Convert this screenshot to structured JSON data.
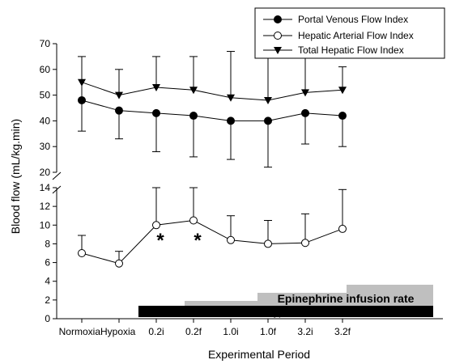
{
  "chart_data": {
    "type": "line",
    "xlabel": "Experimental Period",
    "ylabel": "Blood flow (mL/kg.min)",
    "categories": [
      "Normoxia",
      "Hypoxia",
      "0.2i",
      "0.2f",
      "1.0i",
      "1.0f",
      "3.2i",
      "3.2f"
    ],
    "y_axis_break": {
      "lower_range": [
        0,
        14
      ],
      "upper_range": [
        20,
        70
      ]
    },
    "y_ticks_lower": [
      "0",
      "2",
      "4",
      "6",
      "8",
      "10",
      "12",
      "14"
    ],
    "y_ticks_upper": [
      "20",
      "30",
      "40",
      "50",
      "60",
      "70"
    ],
    "series": [
      {
        "name": "Portal Venous Flow Index",
        "marker": "filled-circle",
        "values": [
          48,
          44,
          43,
          42,
          40,
          40,
          43,
          42
        ],
        "error_upper": [
          null,
          33,
          28,
          26,
          25,
          22,
          31,
          30
        ]
      },
      {
        "name": "Hepatic Arterial Flow Index",
        "marker": "open-circle",
        "values": [
          7.0,
          5.9,
          10.0,
          10.5,
          8.4,
          8.0,
          8.1,
          9.6
        ],
        "error_upper": [
          8.9,
          7.2,
          14.0,
          14.0,
          11.0,
          10.5,
          11.2,
          13.8
        ]
      },
      {
        "name": "Total Hepatic Flow Index",
        "marker": "filled-triangle-down",
        "values": [
          55,
          50,
          53,
          52,
          49,
          48,
          51,
          52
        ],
        "error_upper": [
          65,
          60,
          65,
          65,
          67,
          68,
          68,
          61
        ],
        "error_lower": [
          36,
          null,
          null,
          null,
          null,
          null,
          null,
          null
        ]
      }
    ],
    "significance_markers": [
      {
        "category": "0.2i",
        "label": "*"
      },
      {
        "category": "0.2f",
        "label": "*"
      }
    ],
    "bars": {
      "hypoxia_label": "Hypoxia",
      "epinephrine_label": "Epinephrine infusion rate"
    },
    "legend_position": "top-right",
    "colors": {
      "hypoxia_bar": "#000000",
      "epinephrine_bar": "#bfbfbf"
    }
  }
}
